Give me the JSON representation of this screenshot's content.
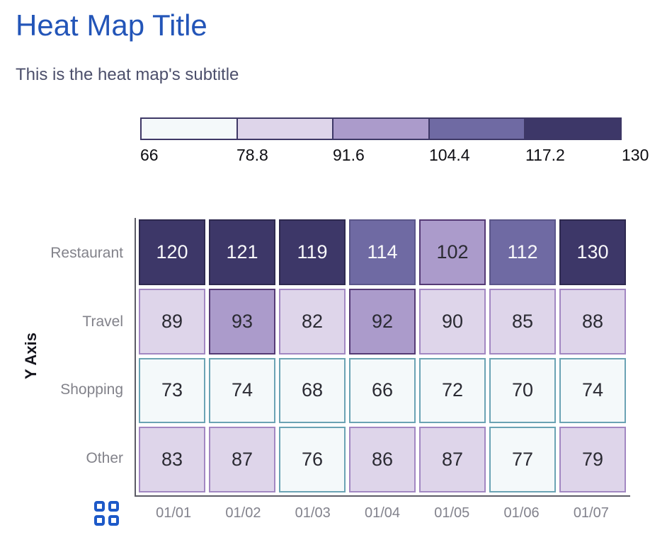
{
  "title": "Heat Map Title",
  "subtitle": "This is the heat map's subtitle",
  "colors": {
    "title_color": "#2355b8",
    "subtitle_color": "#4c4f6b",
    "category_label": "#82828a",
    "tick_label": "#82828c",
    "axis_line": "#5c5c66",
    "axis_title": "#14141c",
    "icon_blue": "#1d59c8",
    "legend_border": "#3e3866",
    "background": "#ffffff"
  },
  "legend": {
    "stops": [
      "66",
      "78.8",
      "91.6",
      "104.4",
      "117.2",
      "130"
    ]
  },
  "palette": [
    {
      "fill": "#f4f9fa",
      "border": "#6ba3b4",
      "text": "#2b2b33"
    },
    {
      "fill": "#ded5ea",
      "border": "#a287c2",
      "text": "#2b2b33"
    },
    {
      "fill": "#ab9bcb",
      "border": "#553a75",
      "text": "#2b2b33"
    },
    {
      "fill": "#6f6aa3",
      "border": "#5b568a",
      "text": "#f8f8fa"
    },
    {
      "fill": "#3d3768",
      "border": "#2e294f",
      "text": "#f8f8fa"
    }
  ],
  "icons": {
    "table_toggle": "grid-icon"
  },
  "chart_data": {
    "type": "heatmap",
    "title": "Heat Map Title",
    "subtitle": "This is the heat map's subtitle",
    "xlabel": "",
    "ylabel": "Y Axis",
    "x_categories": [
      "01/01",
      "01/02",
      "01/03",
      "01/04",
      "01/05",
      "01/06",
      "01/07"
    ],
    "y_categories": [
      "Restaurant",
      "Travel",
      "Shopping",
      "Other"
    ],
    "values": [
      [
        120,
        121,
        119,
        114,
        102,
        112,
        130
      ],
      [
        89,
        93,
        82,
        92,
        90,
        85,
        88
      ],
      [
        73,
        74,
        68,
        66,
        72,
        70,
        74
      ],
      [
        83,
        87,
        76,
        86,
        87,
        77,
        79
      ]
    ],
    "color_scale": {
      "min": 66,
      "max": 130,
      "thresholds": [
        66,
        78.8,
        91.6,
        104.4,
        117.2,
        130
      ],
      "legend_position": "top"
    },
    "grid": false
  }
}
